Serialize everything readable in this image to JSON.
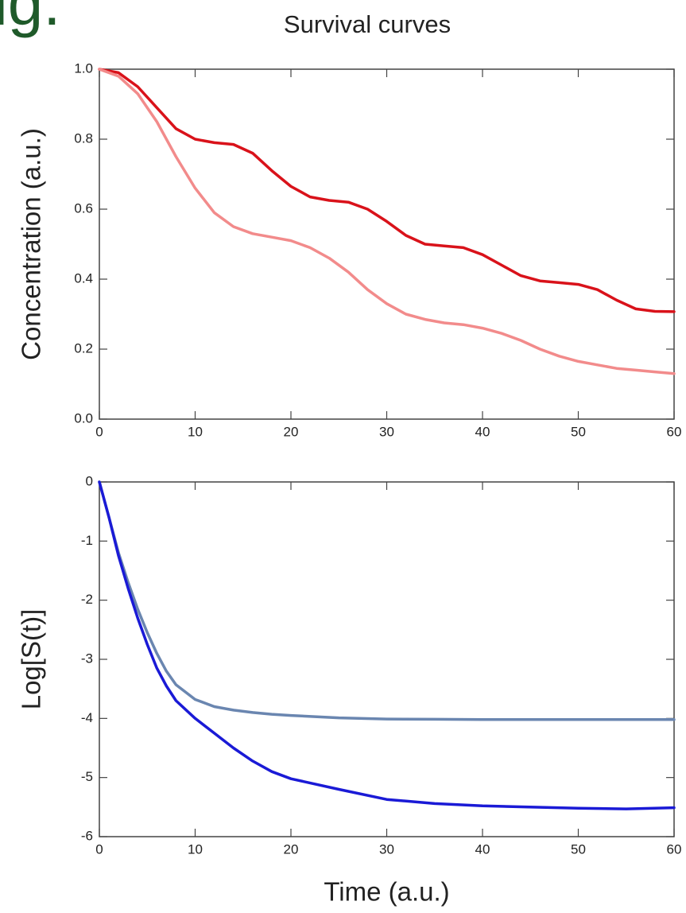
{
  "figure_label": "ig.",
  "chart_data": [
    {
      "type": "line",
      "title": "Survival curves",
      "ylabel": "Concentration (a.u.)",
      "x": [
        0,
        2,
        4,
        6,
        8,
        10,
        12,
        14,
        16,
        18,
        20,
        22,
        24,
        26,
        28,
        30,
        32,
        34,
        36,
        38,
        40,
        42,
        44,
        46,
        48,
        50,
        52,
        54,
        56,
        58,
        60
      ],
      "series": [
        {
          "color": "#d9121a",
          "values": [
            1.0,
            0.99,
            0.95,
            0.89,
            0.83,
            0.8,
            0.79,
            0.785,
            0.76,
            0.71,
            0.665,
            0.635,
            0.625,
            0.62,
            0.6,
            0.565,
            0.525,
            0.5,
            0.495,
            0.49,
            0.47,
            0.44,
            0.41,
            0.395,
            0.39,
            0.385,
            0.37,
            0.34,
            0.315,
            0.308,
            0.307
          ]
        },
        {
          "color": "#f28b8b",
          "values": [
            1.0,
            0.98,
            0.93,
            0.85,
            0.75,
            0.66,
            0.59,
            0.55,
            0.53,
            0.52,
            0.51,
            0.49,
            0.46,
            0.42,
            0.37,
            0.33,
            0.3,
            0.285,
            0.275,
            0.27,
            0.26,
            0.245,
            0.225,
            0.2,
            0.18,
            0.165,
            0.155,
            0.145,
            0.14,
            0.135,
            0.13
          ]
        }
      ],
      "xlim": [
        0,
        60
      ],
      "xticks": [
        0,
        10,
        20,
        30,
        40,
        50,
        60
      ],
      "ylim": [
        0,
        1
      ],
      "yticks": [
        {
          "value": 0,
          "label": "0.0"
        },
        0.2,
        0.4,
        0.6,
        0.8,
        {
          "value": 1,
          "label": "1.0"
        }
      ]
    },
    {
      "type": "line",
      "xlabel": "Time (a.u.)",
      "ylabel": "Log[S(t)]",
      "x": [
        0,
        1,
        2,
        3,
        4,
        5,
        6,
        7,
        8,
        10,
        12,
        14,
        16,
        18,
        20,
        25,
        30,
        35,
        40,
        50,
        55,
        60
      ],
      "series": [
        {
          "color": "#6a86b0",
          "values": [
            0,
            -0.6,
            -1.2,
            -1.7,
            -2.15,
            -2.55,
            -2.9,
            -3.2,
            -3.43,
            -3.68,
            -3.8,
            -3.86,
            -3.9,
            -3.93,
            -3.95,
            -3.99,
            -4.01,
            -4.015,
            -4.02,
            -4.02,
            -4.02,
            -4.02
          ]
        },
        {
          "color": "#1a1ad6",
          "values": [
            0,
            -0.6,
            -1.25,
            -1.8,
            -2.3,
            -2.75,
            -3.15,
            -3.45,
            -3.7,
            -4.0,
            -4.25,
            -4.5,
            -4.72,
            -4.9,
            -5.02,
            -5.2,
            -5.37,
            -5.44,
            -5.48,
            -5.52,
            -5.53,
            -5.51
          ]
        }
      ],
      "xlim": [
        0,
        60
      ],
      "xticks": [
        0,
        10,
        20,
        30,
        40,
        50,
        60
      ],
      "ylim": [
        -6,
        0
      ],
      "yticks": [
        -6,
        -5,
        -4,
        -3,
        -2,
        -1,
        0
      ]
    }
  ]
}
